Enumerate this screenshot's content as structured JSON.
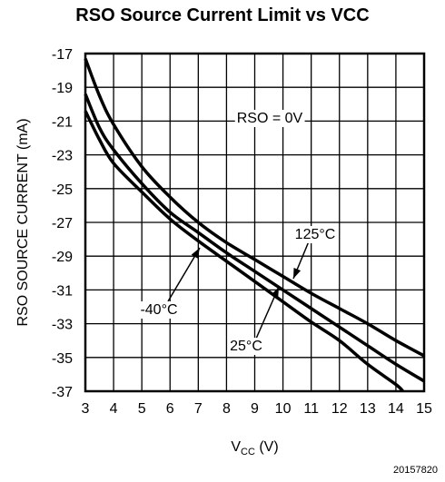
{
  "chart_data": {
    "type": "line",
    "title": "RSO Source Current Limit vs VCC",
    "xlabel": "VCC (V)",
    "xlabel_main": "V",
    "xlabel_sub": "CC",
    "xlabel_unit": " (V)",
    "ylabel": "RSO SOURCE CURRENT (mA)",
    "xlim": [
      3,
      15
    ],
    "ylim": [
      -37,
      -17
    ],
    "x_ticks": [
      "3",
      "4",
      "5",
      "6",
      "7",
      "8",
      "9",
      "10",
      "11",
      "12",
      "13",
      "14",
      "15"
    ],
    "y_ticks": [
      "-17",
      "-19",
      "-21",
      "-23",
      "-25",
      "-27",
      "-29",
      "-31",
      "-33",
      "-35",
      "-37"
    ],
    "grid": true,
    "condition": "RSO = 0V",
    "series": [
      {
        "name": "125°C",
        "x": [
          3,
          3.5,
          4,
          5,
          6,
          7,
          8,
          9,
          10,
          11,
          12,
          13,
          14,
          15
        ],
        "y": [
          -17.3,
          -19.5,
          -21.2,
          -23.7,
          -25.5,
          -27.0,
          -28.2,
          -29.2,
          -30.2,
          -31.2,
          -32.1,
          -33.0,
          -34.0,
          -34.9
        ]
      },
      {
        "name": "25°C",
        "x": [
          3,
          3.5,
          4,
          5,
          6,
          7,
          8,
          9,
          10,
          11,
          12,
          13,
          14,
          15
        ],
        "y": [
          -19.4,
          -21.4,
          -22.7,
          -24.7,
          -26.4,
          -27.6,
          -28.8,
          -29.9,
          -31.0,
          -32.1,
          -33.2,
          -34.3,
          -35.4,
          -36.4
        ]
      },
      {
        "name": "-40°C",
        "x": [
          3,
          3.5,
          4,
          5,
          6,
          7,
          8,
          9,
          10,
          11,
          12,
          13,
          14,
          14.25
        ],
        "y": [
          -20.4,
          -22.1,
          -23.5,
          -25.2,
          -26.8,
          -28.1,
          -29.3,
          -30.5,
          -31.7,
          -32.9,
          -34.0,
          -35.4,
          -36.6,
          -37.0
        ]
      }
    ]
  },
  "figure_id": "20157820"
}
